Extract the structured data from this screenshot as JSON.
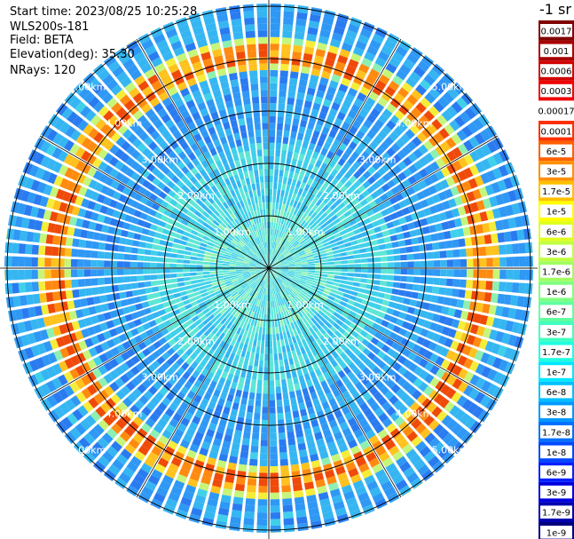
{
  "info": {
    "start_time": "Start time: 2023/08/25 10:25:28",
    "instrument": "WLS200s-181",
    "field": "Field: BETA",
    "elevation": "Elevation(deg): 35.30",
    "nrays": "NRays: 120"
  },
  "chart_data": {
    "type": "heatmap",
    "projection": "polar-ppi",
    "field": "BETA",
    "unit_label": "-1 sr",
    "n_rays": 120,
    "elevation_deg": 35.3,
    "range_km_max": 5.8,
    "range_ring_labels": [
      "1.00km",
      "2.00km",
      "3.00km",
      "4.00km",
      "5.00km"
    ],
    "range_rings_km": [
      1,
      2,
      3,
      4,
      5
    ],
    "ring_peak_range_km": 4.1,
    "colorbar": {
      "labels": [
        "0.0017",
        "0.001",
        "0.0006",
        "0.0003",
        "0.00017",
        "0.0001",
        "6e-5",
        "3e-5",
        "1.7e-5",
        "1e-5",
        "6e-6",
        "3e-6",
        "1.7e-6",
        "1e-6",
        "6e-7",
        "3e-7",
        "1.7e-7",
        "1e-7",
        "6e-8",
        "3e-8",
        "1.7e-8",
        "1e-8",
        "6e-9",
        "3e-9",
        "1.7e-9",
        "1e-9"
      ],
      "colors": [
        "#800000",
        "#a80000",
        "#d00000",
        "#f00000",
        "#ffffff",
        "#ff3000",
        "#ff6000",
        "#ff9000",
        "#ffc000",
        "#ffff00",
        "#e0ff20",
        "#c0ff40",
        "#a0ff60",
        "#80ff80",
        "#60ffa0",
        "#40ffc0",
        "#20ffe0",
        "#00e8ff",
        "#00c0ff",
        "#0098ff",
        "#0070ff",
        "#0048ff",
        "#0020ff",
        "#0000e0",
        "#0000b0",
        "#000080"
      ]
    }
  }
}
